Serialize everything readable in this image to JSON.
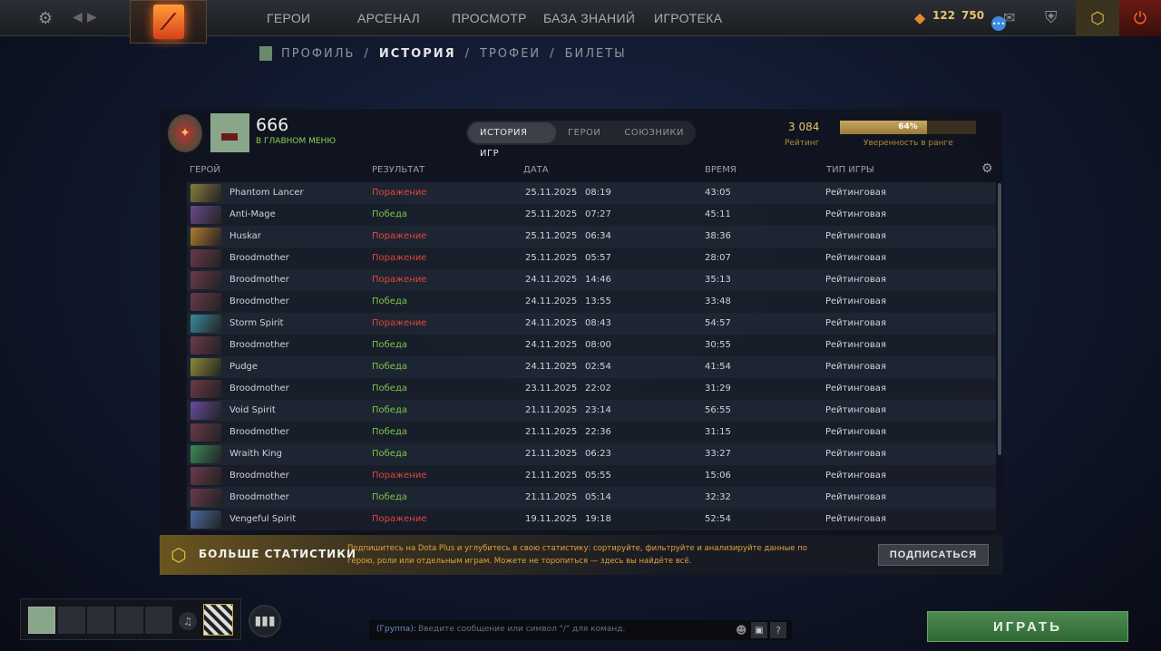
{
  "topbar": {
    "nav": [
      "ГЕРОИ",
      "АРСЕНАЛ",
      "ПРОСМОТР",
      "БАЗА ЗНАНИЙ",
      "ИГРОТЕКА"
    ],
    "shards": "122",
    "level": "750",
    "colors": {
      "gold": "#e9c46a",
      "accent": "#c9a63a"
    }
  },
  "subnav": {
    "items": [
      "ПРОФИЛЬ",
      "ИСТОРИЯ",
      "ТРОФЕИ",
      "БИЛЕТЫ"
    ],
    "active": 1
  },
  "profile": {
    "name": "666",
    "status": "В ГЛАВНОМ МЕНЮ",
    "rating": "3 084",
    "rating_label": "Рейтинг",
    "confidence": 64,
    "confidence_text": "64%",
    "confidence_label": "Уверенность в ранге"
  },
  "tabs": [
    "ИСТОРИЯ ИГР",
    "ГЕРОИ",
    "СОЮЗНИКИ"
  ],
  "columns": [
    "ГЕРОЙ",
    "РЕЗУЛЬТАТ",
    "ДАТА",
    "ВРЕМЯ",
    "ТИП ИГРЫ"
  ],
  "matches": [
    {
      "hero": "Phantom Lancer",
      "result": "Поражение",
      "win": false,
      "date": "25.11.2025",
      "time": "08:19",
      "duration": "43:05",
      "type": "Рейтинговая",
      "color": "#8a7a40"
    },
    {
      "hero": "Anti-Mage",
      "result": "Победа",
      "win": true,
      "date": "25.11.2025",
      "time": "07:27",
      "duration": "45:11",
      "type": "Рейтинговая",
      "color": "#6a4a8a"
    },
    {
      "hero": "Huskar",
      "result": "Поражение",
      "win": false,
      "date": "25.11.2025",
      "time": "06:34",
      "duration": "38:36",
      "type": "Рейтинговая",
      "color": "#b07a30"
    },
    {
      "hero": "Broodmother",
      "result": "Поражение",
      "win": false,
      "date": "25.11.2025",
      "time": "05:57",
      "duration": "28:07",
      "type": "Рейтинговая",
      "color": "#6a3a4a"
    },
    {
      "hero": "Broodmother",
      "result": "Поражение",
      "win": false,
      "date": "24.11.2025",
      "time": "14:46",
      "duration": "35:13",
      "type": "Рейтинговая",
      "color": "#6a3a4a"
    },
    {
      "hero": "Broodmother",
      "result": "Победа",
      "win": true,
      "date": "24.11.2025",
      "time": "13:55",
      "duration": "33:48",
      "type": "Рейтинговая",
      "color": "#6a3a4a"
    },
    {
      "hero": "Storm Spirit",
      "result": "Поражение",
      "win": false,
      "date": "24.11.2025",
      "time": "08:43",
      "duration": "54:57",
      "type": "Рейтинговая",
      "color": "#3a8aa0"
    },
    {
      "hero": "Broodmother",
      "result": "Победа",
      "win": true,
      "date": "24.11.2025",
      "time": "08:00",
      "duration": "30:55",
      "type": "Рейтинговая",
      "color": "#6a3a4a"
    },
    {
      "hero": "Pudge",
      "result": "Победа",
      "win": true,
      "date": "24.11.2025",
      "time": "02:54",
      "duration": "41:54",
      "type": "Рейтинговая",
      "color": "#8a8a3a"
    },
    {
      "hero": "Broodmother",
      "result": "Победа",
      "win": true,
      "date": "23.11.2025",
      "time": "22:02",
      "duration": "31:29",
      "type": "Рейтинговая",
      "color": "#6a3a4a"
    },
    {
      "hero": "Void Spirit",
      "result": "Победа",
      "win": true,
      "date": "21.11.2025",
      "time": "23:14",
      "duration": "56:55",
      "type": "Рейтинговая",
      "color": "#6a4aa0"
    },
    {
      "hero": "Broodmother",
      "result": "Победа",
      "win": true,
      "date": "21.11.2025",
      "time": "22:36",
      "duration": "31:15",
      "type": "Рейтинговая",
      "color": "#6a3a4a"
    },
    {
      "hero": "Wraith King",
      "result": "Победа",
      "win": true,
      "date": "21.11.2025",
      "time": "06:23",
      "duration": "33:27",
      "type": "Рейтинговая",
      "color": "#3a8a5a"
    },
    {
      "hero": "Broodmother",
      "result": "Поражение",
      "win": false,
      "date": "21.11.2025",
      "time": "05:55",
      "duration": "15:06",
      "type": "Рейтинговая",
      "color": "#6a3a4a"
    },
    {
      "hero": "Broodmother",
      "result": "Победа",
      "win": true,
      "date": "21.11.2025",
      "time": "05:14",
      "duration": "32:32",
      "type": "Рейтинговая",
      "color": "#6a3a4a"
    },
    {
      "hero": "Vengeful Spirit",
      "result": "Поражение",
      "win": false,
      "date": "19.11.2025",
      "time": "19:18",
      "duration": "52:54",
      "type": "Рейтинговая",
      "color": "#4a6aa0"
    }
  ],
  "banner": {
    "title": "БОЛЬШЕ СТАТИСТИКИ",
    "text1": "Подпишитесь на Dota Plus и углубитесь в свою статистику: сортируйте, фильтруйте и анализируйте данные по",
    "text2": "герою, роли или отдельным играм. Можете не торопиться — здесь вы найдёте всё.",
    "button": "ПОДПИСАТЬСЯ"
  },
  "chat": {
    "channel": "(Группа):",
    "placeholder": "Введите сообщение или символ \"/\" для команд.",
    "help": "?"
  },
  "play": "ИГРАТЬ"
}
